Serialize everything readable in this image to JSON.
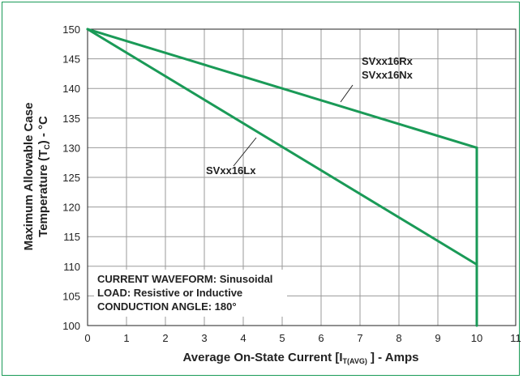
{
  "chart_data": {
    "type": "line",
    "xlabel_main": "Average On-State Current [I",
    "xlabel_sub": "T(AVG)",
    "xlabel_end": " ] - Amps",
    "ylabel_line1": "Maximum Allowable Case",
    "ylabel_line2_main": "Temperature (T",
    "ylabel_line2_sub": "C",
    "ylabel_line2_end": ") - °C",
    "xlim": [
      0,
      11
    ],
    "ylim": [
      100,
      150
    ],
    "x_ticks": [
      "0",
      "1",
      "2",
      "3",
      "4",
      "5",
      "6",
      "7",
      "8",
      "9",
      "10",
      "11"
    ],
    "y_ticks": [
      "100",
      "105",
      "110",
      "115",
      "120",
      "125",
      "130",
      "135",
      "140",
      "145",
      "150"
    ],
    "grid": true,
    "line_color": "#1a9a57",
    "series": [
      {
        "name": "SVxx16Rx / SVxx16Nx",
        "x": [
          0,
          10,
          10
        ],
        "y": [
          150,
          130,
          100
        ]
      },
      {
        "name": "SVxx16Lx",
        "x": [
          0,
          10,
          10
        ],
        "y": [
          150,
          110.3,
          100
        ]
      }
    ],
    "annotations": {
      "series_label_1a": "SVxx16Rx",
      "series_label_1b": "SVxx16Nx",
      "series_label_2": "SVxx16Lx",
      "note_line1": "CURRENT WAVEFORM: Sinusoidal",
      "note_line2": "LOAD: Resistive or Inductive",
      "note_line3": "CONDUCTION ANGLE: 180°"
    }
  }
}
